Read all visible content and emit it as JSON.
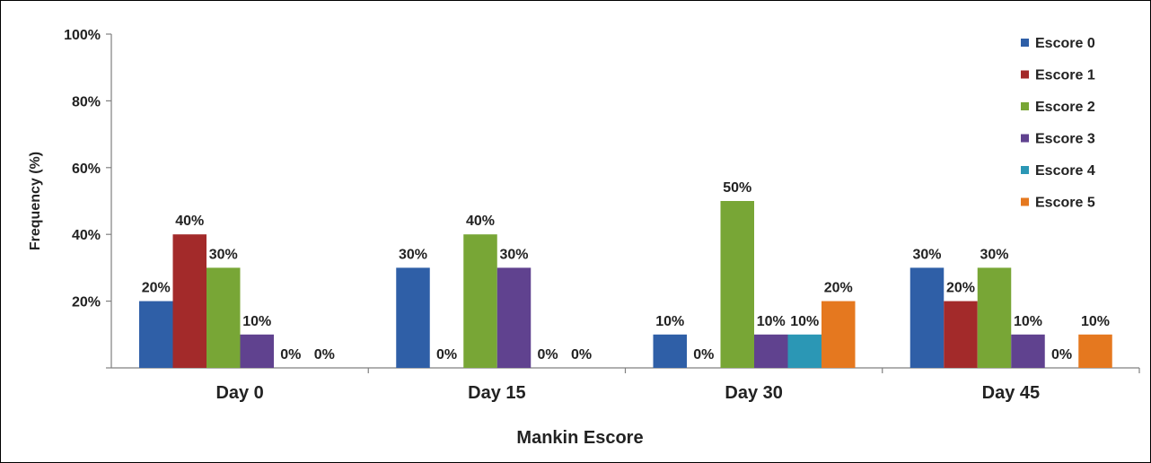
{
  "chart_data": {
    "type": "bar",
    "title": "",
    "xlabel": "Mankin Escore",
    "ylabel": "Frequency (%)",
    "ylim": [
      0,
      100
    ],
    "yticks": [
      "100%",
      "80%",
      "60%",
      "40%",
      "20%"
    ],
    "categories": [
      "Day 0",
      "Day 15",
      "Day 30",
      "Day 45"
    ],
    "series": [
      {
        "name": "Escore 0",
        "color": "#2f5fa7",
        "values": [
          20,
          30,
          10,
          30
        ],
        "labels": [
          "20%",
          "30%",
          "10%",
          "30%"
        ]
      },
      {
        "name": "Escore 1",
        "color": "#a32a2a",
        "values": [
          40,
          0,
          0,
          20
        ],
        "labels": [
          "40%",
          "0%",
          "0%",
          "20%"
        ]
      },
      {
        "name": "Escore 2",
        "color": "#78a636",
        "values": [
          30,
          40,
          50,
          30
        ],
        "labels": [
          "30%",
          "40%",
          "50%",
          "30%"
        ]
      },
      {
        "name": "Escore 3",
        "color": "#60428f",
        "values": [
          10,
          30,
          10,
          10
        ],
        "labels": [
          "10%",
          "30%",
          "10%",
          "10%"
        ]
      },
      {
        "name": "Escore 4",
        "color": "#2b97b5",
        "values": [
          0,
          0,
          10,
          0
        ],
        "labels": [
          "0%",
          "0%",
          "10%",
          "0%"
        ]
      },
      {
        "name": "Escore 5",
        "color": "#e5781f",
        "values": [
          0,
          0,
          20,
          10
        ],
        "labels": [
          "0%",
          "0%",
          "20%",
          "10%"
        ]
      }
    ],
    "grid": false,
    "legend": "right"
  }
}
